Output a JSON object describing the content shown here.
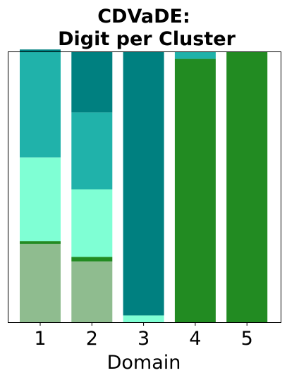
{
  "chart_data": {
    "type": "bar",
    "stacked": true,
    "normalized": true,
    "title_lines": [
      "CDVaDE:",
      "Digit per Cluster"
    ],
    "xlabel": "Domain",
    "ylabel": "",
    "categories": [
      "1",
      "2",
      "3",
      "4",
      "5"
    ],
    "ylim": [
      0,
      1
    ],
    "y_ticks_shown": false,
    "grid": false,
    "legend": "none",
    "series": [
      {
        "color": "#8fbc8f",
        "values": [
          0.29,
          0.225,
          0.0,
          0.0,
          0.0
        ]
      },
      {
        "color": "#228b22",
        "values": [
          0.01,
          0.017,
          0.0,
          0.975,
          1.0
        ]
      },
      {
        "color": "#7fffd4",
        "values": [
          0.31,
          0.25,
          0.025,
          0.0,
          0.0
        ]
      },
      {
        "color": "#20b2aa",
        "values": [
          0.39,
          0.285,
          0.0,
          0.025,
          0.0
        ]
      },
      {
        "color": "#008080",
        "values": [
          0.01,
          0.223,
          0.975,
          0.0,
          0.0
        ]
      }
    ]
  }
}
